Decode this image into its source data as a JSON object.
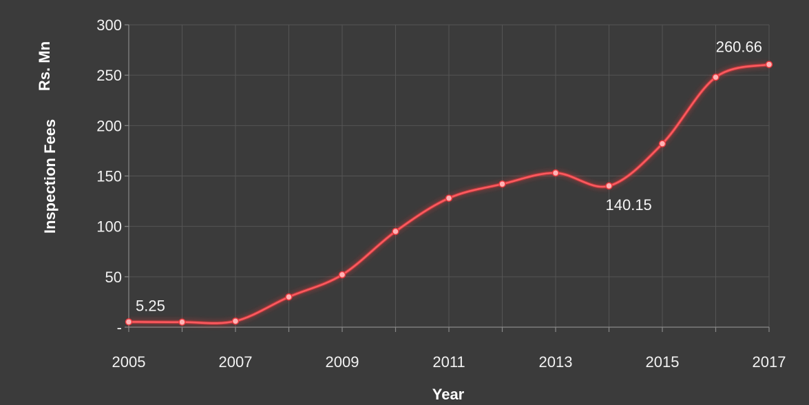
{
  "chart_data": {
    "type": "line",
    "xlabel": "Year",
    "ylabel": "Inspection Fees",
    "yunit": "Rs. Mn",
    "x": [
      2005,
      2006,
      2007,
      2008,
      2009,
      2010,
      2011,
      2012,
      2013,
      2014,
      2015,
      2016,
      2017
    ],
    "xticks": [
      "2005",
      "2007",
      "2009",
      "2011",
      "2013",
      "2015",
      "2017"
    ],
    "ylim": [
      0,
      300
    ],
    "yticks": [
      {
        "value": 0,
        "label": "-"
      },
      {
        "value": 50,
        "label": "50"
      },
      {
        "value": 100,
        "label": "100"
      },
      {
        "value": 150,
        "label": "150"
      },
      {
        "value": 200,
        "label": "200"
      },
      {
        "value": 250,
        "label": "250"
      },
      {
        "value": 300,
        "label": "300"
      }
    ],
    "series": [
      {
        "values": [
          5.25,
          5,
          6,
          30,
          52,
          95,
          128,
          142,
          153,
          140.15,
          182,
          248,
          260.66
        ],
        "color": "#e8383d"
      }
    ],
    "annotations": [
      {
        "x": 2005,
        "text": "5.25"
      },
      {
        "x": 2014,
        "text": "140.15"
      },
      {
        "x": 2017,
        "text": "260.66"
      }
    ],
    "grid": true,
    "legend": "none",
    "background": "#3b3b3b",
    "gridcolor": "#555555"
  }
}
